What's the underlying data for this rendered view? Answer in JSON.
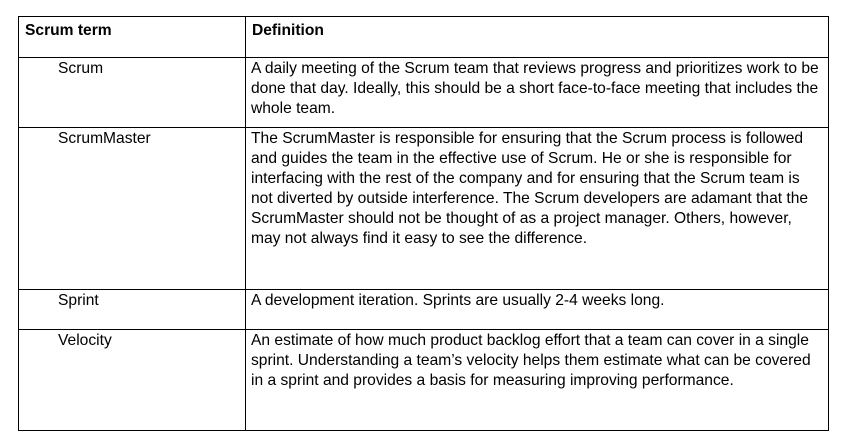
{
  "table": {
    "headers": {
      "term": "Scrum term",
      "definition": "Definition"
    },
    "rows": [
      {
        "term": "Scrum",
        "definition": "A daily meeting of the Scrum team that reviews progress and prioritizes work to be done that day. Ideally, this should be a short face-to-face meeting that includes the whole team."
      },
      {
        "term": "ScrumMaster",
        "definition": "The ScrumMaster is responsible for ensuring that the Scrum process is followed and guides the team in the effective use of Scrum. He or she is responsible for interfacing with the rest of the company and for ensuring that the Scrum team is not diverted by outside interference. The Scrum developers are adamant that the ScrumMaster should not be thought of as a project manager. Others, however, may not always find it easy to see the difference."
      },
      {
        "term": "Sprint",
        "definition": "A development iteration. Sprints are usually 2-4 weeks long."
      },
      {
        "term": "Velocity",
        "definition": "An estimate of how much product backlog effort that a team can cover in a single sprint.  Understanding a team’s velocity helps them estimate what can be covered in a sprint and provides a basis for measuring improving performance."
      }
    ]
  }
}
